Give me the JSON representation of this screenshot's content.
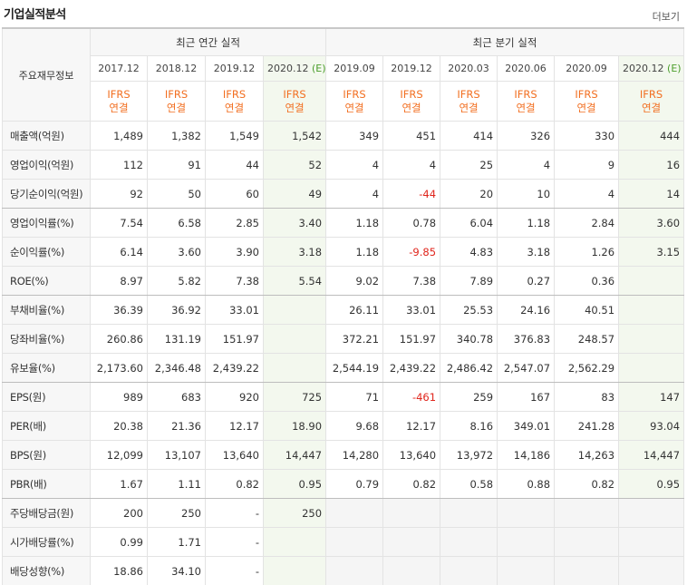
{
  "header": {
    "title": "기업실적분석",
    "more": "더보기"
  },
  "table": {
    "corner": "주요재무정보",
    "groups": [
      {
        "label": "최근 연간 실적",
        "span": 4
      },
      {
        "label": "최근 분기 실적",
        "span": 6
      }
    ],
    "columns": [
      {
        "period": "2017.12",
        "estimate": null,
        "basis": "IFRS",
        "scope": "연결"
      },
      {
        "period": "2018.12",
        "estimate": null,
        "basis": "IFRS",
        "scope": "연결"
      },
      {
        "period": "2019.12",
        "estimate": null,
        "basis": "IFRS",
        "scope": "연결"
      },
      {
        "period": "2020.12",
        "estimate": "(E)",
        "basis": "IFRS",
        "scope": "연결"
      },
      {
        "period": "2019.09",
        "estimate": null,
        "basis": "IFRS",
        "scope": "연결"
      },
      {
        "period": "2019.12",
        "estimate": null,
        "basis": "IFRS",
        "scope": "연결"
      },
      {
        "period": "2020.03",
        "estimate": null,
        "basis": "IFRS",
        "scope": "연결"
      },
      {
        "period": "2020.06",
        "estimate": null,
        "basis": "IFRS",
        "scope": "연결"
      },
      {
        "period": "2020.09",
        "estimate": null,
        "basis": "IFRS",
        "scope": "연결"
      },
      {
        "period": "2020.12",
        "estimate": "(E)",
        "basis": "IFRS",
        "scope": "연결"
      }
    ],
    "rows": [
      {
        "label": "매출액(억원)",
        "values": [
          "1,489",
          "1,382",
          "1,549",
          "1,542",
          "349",
          "451",
          "414",
          "326",
          "330",
          "444"
        ]
      },
      {
        "label": "영업이익(억원)",
        "values": [
          "112",
          "91",
          "44",
          "52",
          "4",
          "4",
          "25",
          "4",
          "9",
          "16"
        ]
      },
      {
        "label": "당기순이익(억원)",
        "values": [
          "92",
          "50",
          "60",
          "49",
          "4",
          "-44",
          "20",
          "10",
          "4",
          "14"
        ]
      },
      {
        "label": "영업이익률(%)",
        "values": [
          "7.54",
          "6.58",
          "2.85",
          "3.40",
          "1.18",
          "0.78",
          "6.04",
          "1.18",
          "2.84",
          "3.60"
        ]
      },
      {
        "label": "순이익률(%)",
        "values": [
          "6.14",
          "3.60",
          "3.90",
          "3.18",
          "1.18",
          "-9.85",
          "4.83",
          "3.18",
          "1.26",
          "3.15"
        ]
      },
      {
        "label": "ROE(%)",
        "values": [
          "8.97",
          "5.82",
          "7.38",
          "5.54",
          "9.02",
          "7.38",
          "7.89",
          "0.27",
          "0.36",
          null
        ]
      },
      {
        "label": "부채비율(%)",
        "values": [
          "36.39",
          "36.92",
          "33.01",
          null,
          "26.11",
          "33.01",
          "25.53",
          "24.16",
          "40.51",
          null
        ]
      },
      {
        "label": "당좌비율(%)",
        "values": [
          "260.86",
          "131.19",
          "151.97",
          null,
          "372.21",
          "151.97",
          "340.78",
          "376.83",
          "248.57",
          null
        ]
      },
      {
        "label": "유보율(%)",
        "values": [
          "2,173.60",
          "2,346.48",
          "2,439.22",
          null,
          "2,544.19",
          "2,439.22",
          "2,486.42",
          "2,547.07",
          "2,562.29",
          null
        ]
      },
      {
        "label": "EPS(원)",
        "values": [
          "989",
          "683",
          "920",
          "725",
          "71",
          "-461",
          "259",
          "167",
          "83",
          "147"
        ]
      },
      {
        "label": "PER(배)",
        "values": [
          "20.38",
          "21.36",
          "12.17",
          "18.90",
          "9.68",
          "12.17",
          "8.16",
          "349.01",
          "241.28",
          "93.04"
        ]
      },
      {
        "label": "BPS(원)",
        "values": [
          "12,099",
          "13,107",
          "13,640",
          "14,447",
          "14,280",
          "13,640",
          "13,972",
          "14,186",
          "14,263",
          "14,447"
        ]
      },
      {
        "label": "PBR(배)",
        "values": [
          "1.67",
          "1.11",
          "0.82",
          "0.95",
          "0.79",
          "0.82",
          "0.58",
          "0.88",
          "0.82",
          "0.95"
        ]
      },
      {
        "label": "주당배당금(원)",
        "values": [
          "200",
          "250",
          "-",
          "250",
          null,
          null,
          null,
          null,
          null,
          null
        ]
      },
      {
        "label": "시가배당률(%)",
        "values": [
          "0.99",
          "1.71",
          "-",
          null,
          null,
          null,
          null,
          null,
          null,
          null
        ]
      },
      {
        "label": "배당성향(%)",
        "values": [
          "18.86",
          "34.10",
          "-",
          null,
          null,
          null,
          null,
          null,
          null,
          null
        ]
      }
    ]
  }
}
